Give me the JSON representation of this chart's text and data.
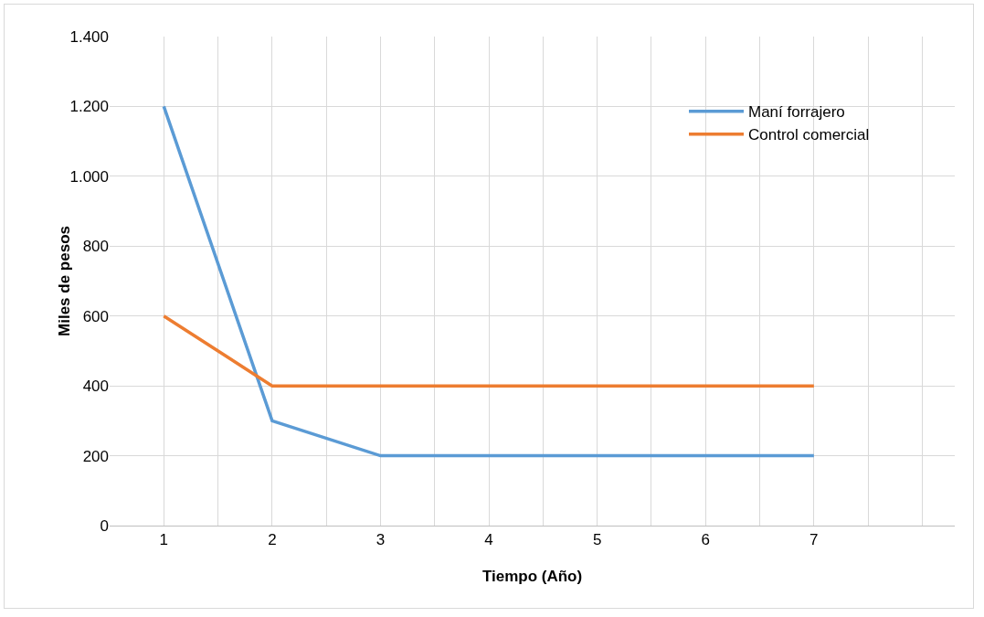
{
  "chart_data": {
    "type": "line",
    "xlabel": "Tiempo (Año)",
    "ylabel": "Miles de pesos",
    "x": [
      1,
      2,
      3,
      4,
      5,
      6,
      7
    ],
    "series": [
      {
        "name": "Maní forrajero",
        "color": "#5b9bd5",
        "values": [
          1200,
          300,
          200,
          200,
          200,
          200,
          200
        ]
      },
      {
        "name": "Control comercial",
        "color": "#ed7d31",
        "values": [
          600,
          400,
          400,
          400,
          400,
          400,
          400
        ]
      }
    ],
    "xlim": [
      0.5,
      8.3
    ],
    "xticks": [
      1,
      {
        "value": 1.5,
        "label": null
      },
      2,
      {
        "value": 2.5,
        "label": null
      },
      3,
      {
        "value": 3.5,
        "label": null
      },
      4,
      {
        "value": 4.5,
        "label": null
      },
      5,
      {
        "value": 5.5,
        "label": null
      },
      6,
      {
        "value": 6.5,
        "label": null
      },
      7,
      {
        "value": 7.5,
        "label": null
      },
      {
        "value": 8,
        "label": null
      }
    ],
    "ylim": [
      0,
      1400
    ],
    "yticks": [
      0,
      200,
      400,
      600,
      800,
      {
        "value": 1000,
        "label": "1.000"
      },
      {
        "value": 1200,
        "label": "1.200"
      },
      {
        "value": 1400,
        "label": "1.400"
      }
    ],
    "grid": true,
    "legend": "top right",
    "marker": "none",
    "line_style": "solid"
  }
}
